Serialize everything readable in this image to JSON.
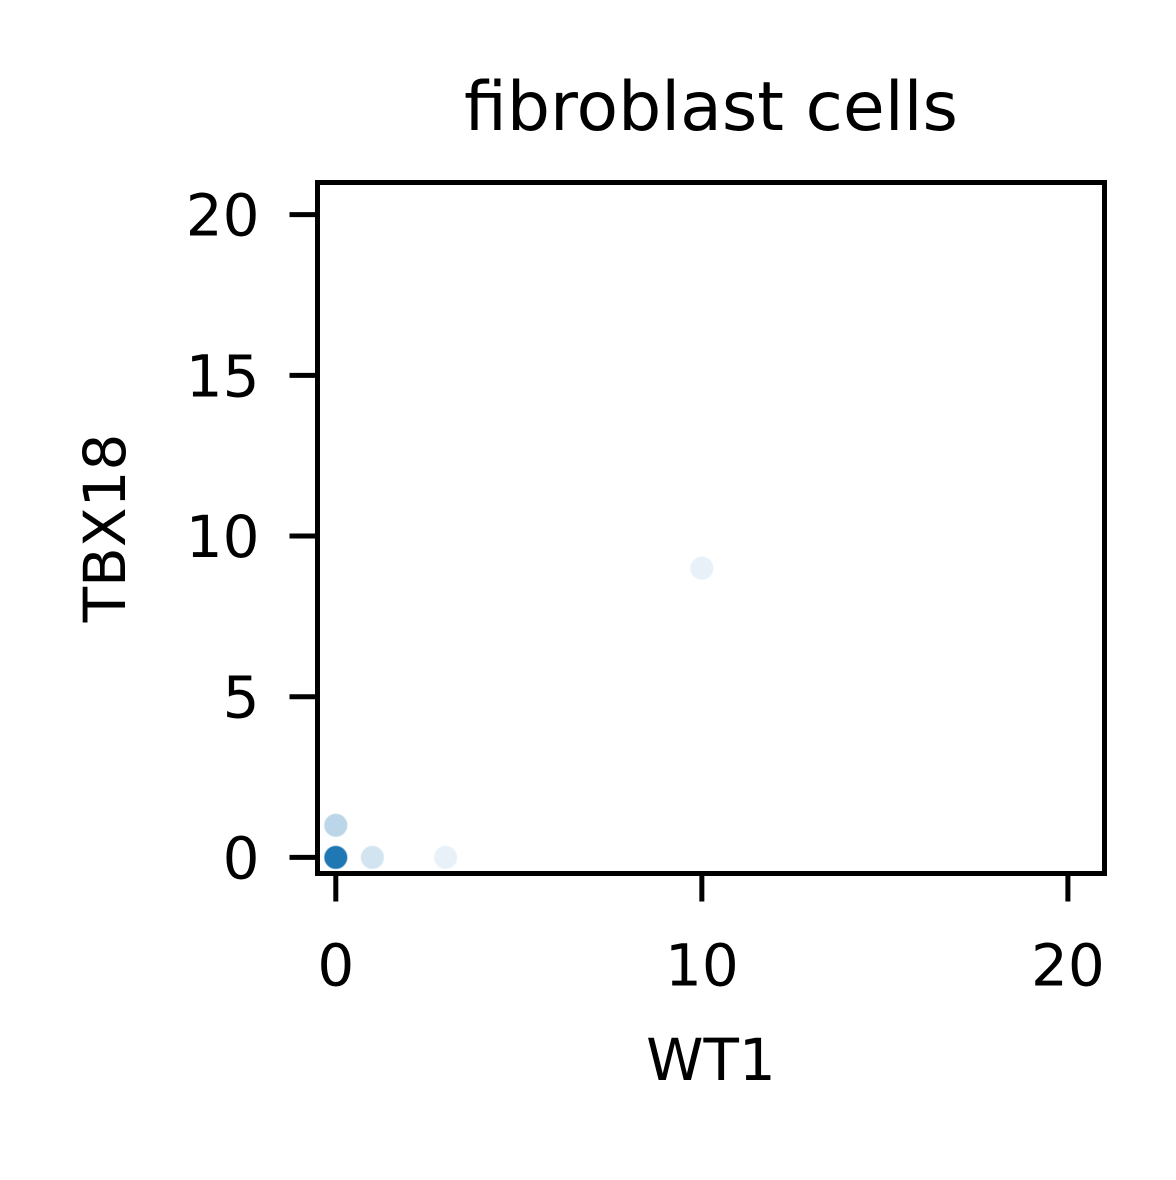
{
  "chart_data": {
    "type": "scatter",
    "title": "fibroblast cells",
    "xlabel": "WT1",
    "ylabel": "TBX18",
    "xlim": [
      -0.5,
      21
    ],
    "ylim": [
      -0.5,
      21
    ],
    "xticks": [
      0,
      10,
      20
    ],
    "yticks": [
      0,
      5,
      10,
      15,
      20
    ],
    "grid": false,
    "point_color": "#1f77b4",
    "points": [
      {
        "x": 0,
        "y": 0,
        "alpha": 1.0
      },
      {
        "x": 0,
        "y": 1,
        "alpha": 0.3
      },
      {
        "x": 1,
        "y": 0,
        "alpha": 0.2
      },
      {
        "x": 3,
        "y": 0,
        "alpha": 0.1
      },
      {
        "x": 10,
        "y": 9,
        "alpha": 0.1
      }
    ]
  }
}
